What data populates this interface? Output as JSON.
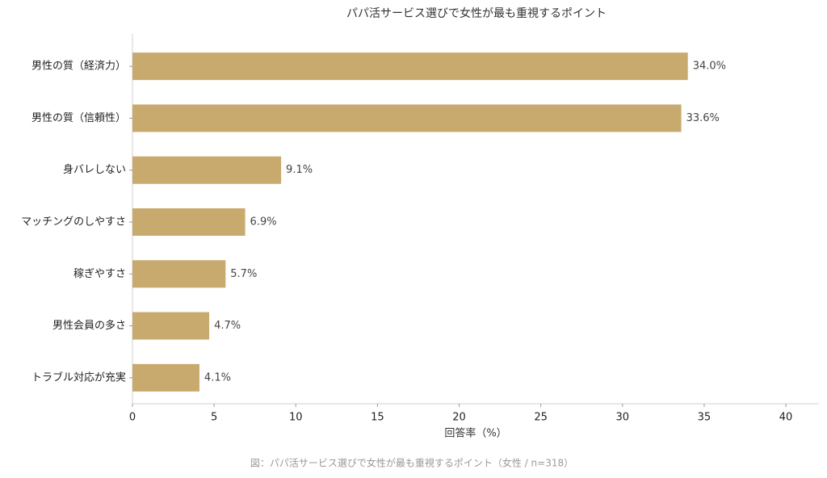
{
  "chart_data": {
    "type": "hbar",
    "title": "パパ活サービス選びで女性が最も重視するポイント",
    "categories": [
      "男性の質（経済力）",
      "男性の質（信頼性）",
      "身バレしない",
      "マッチングのしやすさ",
      "稼ぎやすさ",
      "男性会員の多さ",
      "トラブル対応が充実"
    ],
    "values": [
      34.0,
      33.6,
      9.1,
      6.9,
      5.7,
      4.7,
      4.1
    ],
    "value_labels": [
      "34.0%",
      "33.6%",
      "9.1%",
      "6.9%",
      "5.7%",
      "4.7%",
      "4.1%"
    ],
    "color": "#c8a96e",
    "xlabel": "回答率（%）",
    "xlim": [
      0,
      42
    ],
    "xticks": [
      0,
      5,
      10,
      15,
      20,
      25,
      30,
      35,
      40
    ],
    "grid": false,
    "caption": "図：パパ活サービス選びで女性が最も重視するポイント（女性 / n=318）"
  }
}
